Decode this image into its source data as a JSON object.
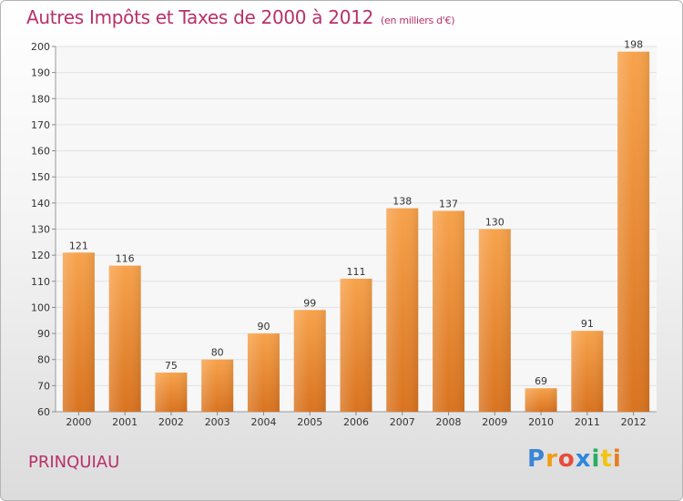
{
  "header": {
    "title": "Autres Impôts et Taxes de 2000 à 2012",
    "subtitle": "(en milliers d'€)"
  },
  "footer": {
    "commune": "PRINQUIAU",
    "logo_letters": [
      "P",
      "r",
      "o",
      "x",
      "i",
      "t",
      "i"
    ],
    "logo_colors": [
      "#3a86d4",
      "#f39c12",
      "#e74c3c",
      "#2e86de",
      "#27ae60",
      "#f1c40f",
      "#e67e22"
    ]
  },
  "chart_data": {
    "type": "bar",
    "title": "Autres Impôts et Taxes de 2000 à 2012",
    "categories": [
      "2000",
      "2001",
      "2002",
      "2003",
      "2004",
      "2005",
      "2006",
      "2007",
      "2008",
      "2009",
      "2010",
      "2011",
      "2012"
    ],
    "values": [
      121,
      116,
      75,
      80,
      90,
      99,
      111,
      138,
      137,
      130,
      69,
      91,
      198
    ],
    "ylim": [
      60,
      200
    ],
    "yticks": [
      60,
      70,
      80,
      90,
      100,
      110,
      120,
      130,
      140,
      150,
      160,
      170,
      180,
      190,
      200
    ],
    "grid": true,
    "bar_color": "#f0913a"
  }
}
